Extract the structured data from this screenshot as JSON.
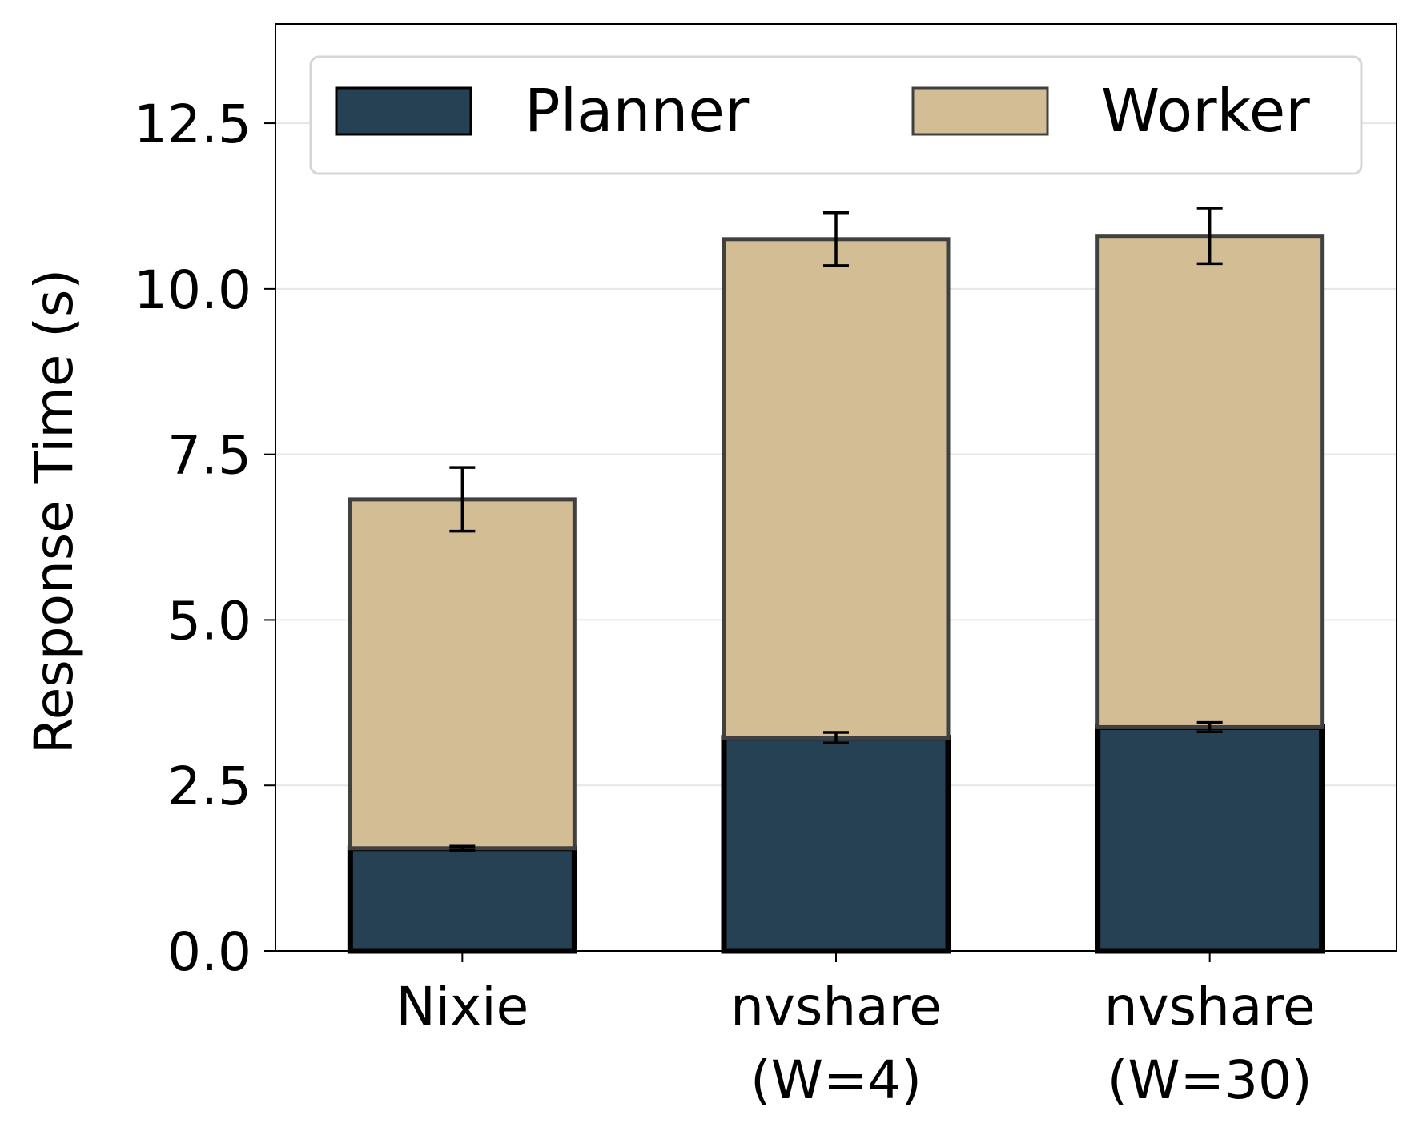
{
  "chart_data": {
    "type": "bar",
    "stacked": true,
    "title": "",
    "xlabel": "",
    "ylabel": "Response Time (s)",
    "ylim": [
      0,
      14
    ],
    "yticks": [
      0.0,
      2.5,
      5.0,
      7.5,
      10.0,
      12.5
    ],
    "ytick_labels": [
      "0.0",
      "2.5",
      "5.0",
      "7.5",
      "10.0",
      "12.5"
    ],
    "grid": "horizontal",
    "categories": [
      [
        "Nixie"
      ],
      [
        "nvshare",
        "(W=4)"
      ],
      [
        "nvshare",
        "(W=30)"
      ]
    ],
    "series": [
      {
        "name": "Planner",
        "color": "#264153",
        "edge_color": "#000000",
        "values": [
          1.55,
          3.22,
          3.38
        ],
        "errors": [
          0.03,
          0.08,
          0.07
        ]
      },
      {
        "name": "Worker",
        "color": "#d3bd94",
        "edge_color": "#404040",
        "values": [
          5.27,
          7.53,
          7.42
        ],
        "errors": [
          0.48,
          0.4,
          0.42
        ]
      }
    ],
    "legend": {
      "placement": "top",
      "ncol": 2,
      "frame_color": "#d6d6d6"
    }
  }
}
